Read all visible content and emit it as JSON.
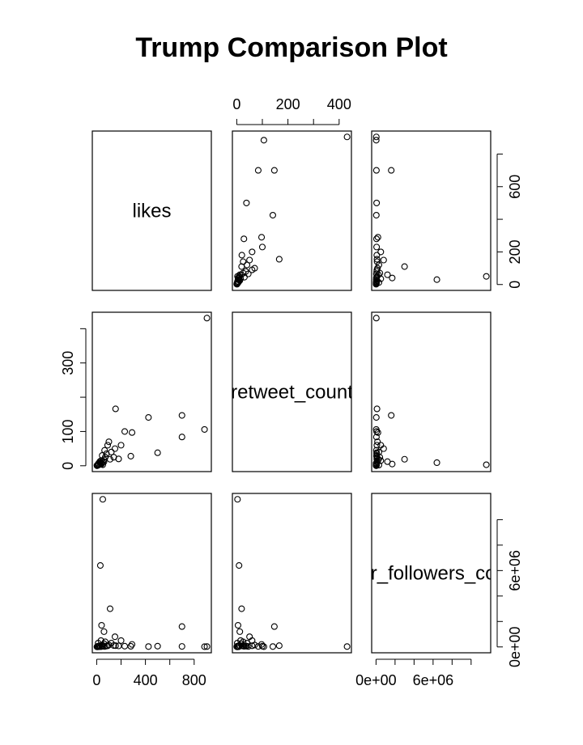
{
  "chart_data": {
    "type": "scatter_matrix",
    "title": "Trump Comparison Plot",
    "variables": [
      {
        "name": "likes",
        "values": [
          905,
          885,
          700,
          700,
          500,
          425,
          290,
          155,
          280,
          50,
          30,
          110,
          40,
          60,
          200,
          180,
          120,
          100,
          90,
          80,
          70,
          60,
          50,
          45,
          40,
          35,
          30,
          25,
          20,
          15,
          12,
          10,
          8,
          5,
          3,
          2,
          150,
          230,
          140,
          65
        ],
        "lim": [
          -36,
          941
        ],
        "xticks": [
          {
            "value": 0,
            "label": "0"
          },
          {
            "value": 200,
            "label": null
          },
          {
            "value": 400,
            "label": "400"
          },
          {
            "value": 600,
            "label": null
          },
          {
            "value": 800,
            "label": "800"
          }
        ],
        "yticks": [
          {
            "value": 0,
            "label": "0"
          },
          {
            "value": 200,
            "label": "200"
          },
          {
            "value": 400,
            "label": null
          },
          {
            "value": 600,
            "label": "600"
          },
          {
            "value": 800,
            "label": null
          }
        ]
      },
      {
        "name": "retweet_count",
        "values": [
          431,
          106,
          84,
          147,
          38,
          141,
          97,
          166,
          28,
          3,
          9,
          19,
          5,
          12,
          60,
          20,
          40,
          70,
          60,
          35,
          25,
          18,
          10,
          30,
          8,
          15,
          5,
          12,
          3,
          7,
          2,
          4,
          1,
          2,
          0,
          1,
          50,
          100,
          25,
          45
        ],
        "lim": [
          -17,
          448
        ],
        "xticks": [
          {
            "value": 0,
            "label": "0"
          },
          {
            "value": 100,
            "label": null
          },
          {
            "value": 200,
            "label": "200"
          },
          {
            "value": 300,
            "label": null
          },
          {
            "value": 400,
            "label": "400"
          }
        ],
        "yticks": [
          {
            "value": 0,
            "label": "0"
          },
          {
            "value": 100,
            "label": "100"
          },
          {
            "value": 200,
            "label": null
          },
          {
            "value": 300,
            "label": "300"
          },
          {
            "value": 400,
            "label": null
          }
        ]
      },
      {
        "name": "user_followers_count",
        "values": [
          30000,
          20000,
          40000,
          1600000,
          60000,
          30000,
          200000,
          100000,
          50000,
          11600000,
          6400000,
          3000000,
          1700000,
          1200000,
          500000,
          80000,
          300000,
          150000,
          90000,
          70000,
          400000,
          250000,
          120000,
          60000,
          30000,
          500000,
          20000,
          100000,
          40000,
          10000,
          300000,
          15000,
          50000,
          5000,
          20000,
          8000,
          800000,
          60000,
          110000,
          35000
        ],
        "lim": [
          -460000,
          12060000
        ],
        "xticks": [
          {
            "value": 0,
            "label": "0e+00"
          },
          {
            "value": 2000000,
            "label": null
          },
          {
            "value": 4000000,
            "label": null
          },
          {
            "value": 6000000,
            "label": "6e+06"
          },
          {
            "value": 8000000,
            "label": null
          },
          {
            "value": 10000000,
            "label": null
          }
        ],
        "yticks": [
          {
            "value": 0,
            "label": "0e+00"
          },
          {
            "value": 2000000,
            "label": null
          },
          {
            "value": 4000000,
            "label": null
          },
          {
            "value": 6000000,
            "label": "6e+06"
          },
          {
            "value": 8000000,
            "label": null
          },
          {
            "value": 10000000,
            "label": null
          }
        ]
      }
    ]
  }
}
